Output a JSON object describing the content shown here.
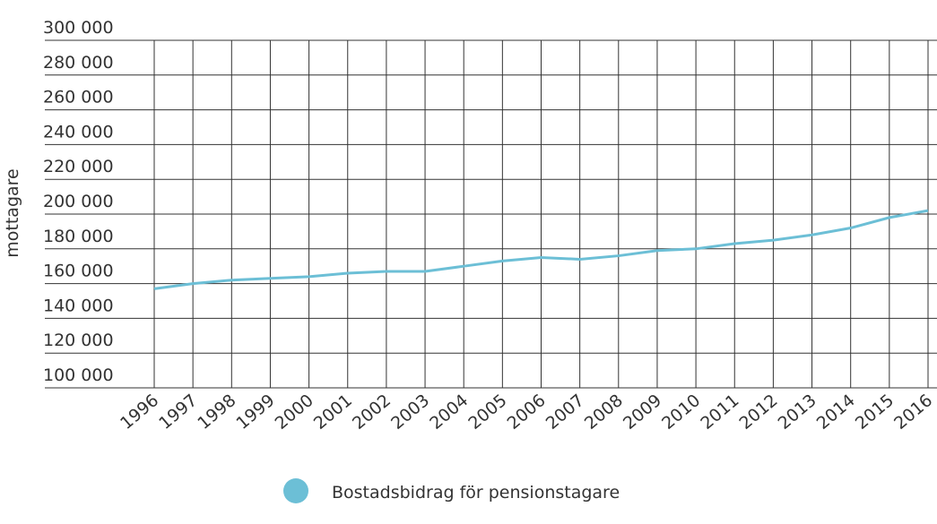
{
  "chart_data": {
    "type": "line",
    "y_label": "mottagare",
    "x": [
      "1996",
      "1997",
      "1998",
      "1999",
      "2000",
      "2001",
      "2002",
      "2003",
      "2004",
      "2005",
      "2006",
      "2007",
      "2008",
      "2009",
      "2010",
      "2011",
      "2012",
      "2013",
      "2014",
      "2015",
      "2016"
    ],
    "series": [
      {
        "name": "Bostadsbidrag för pensionstagare",
        "color": "#6cbfd6",
        "values": [
          157000,
          160000,
          162000,
          163000,
          164000,
          166000,
          167000,
          167000,
          170000,
          173000,
          175000,
          174000,
          176000,
          179000,
          180000,
          183000,
          185000,
          188000,
          192000,
          198000,
          202000
        ]
      }
    ],
    "ylim": [
      100000,
      300000
    ],
    "yticks": [
      {
        "value": 100000,
        "label": "100 000"
      },
      {
        "value": 120000,
        "label": "120 000"
      },
      {
        "value": 140000,
        "label": "140 000"
      },
      {
        "value": 160000,
        "label": "160 000"
      },
      {
        "value": 180000,
        "label": "180 000"
      },
      {
        "value": 200000,
        "label": "200 000"
      },
      {
        "value": 220000,
        "label": "220 000"
      },
      {
        "value": 240000,
        "label": "240 000"
      },
      {
        "value": 260000,
        "label": "260 000"
      },
      {
        "value": 280000,
        "label": "280 000"
      },
      {
        "value": 300000,
        "label": "300 000"
      }
    ],
    "grid": true,
    "legend": "bottom"
  }
}
